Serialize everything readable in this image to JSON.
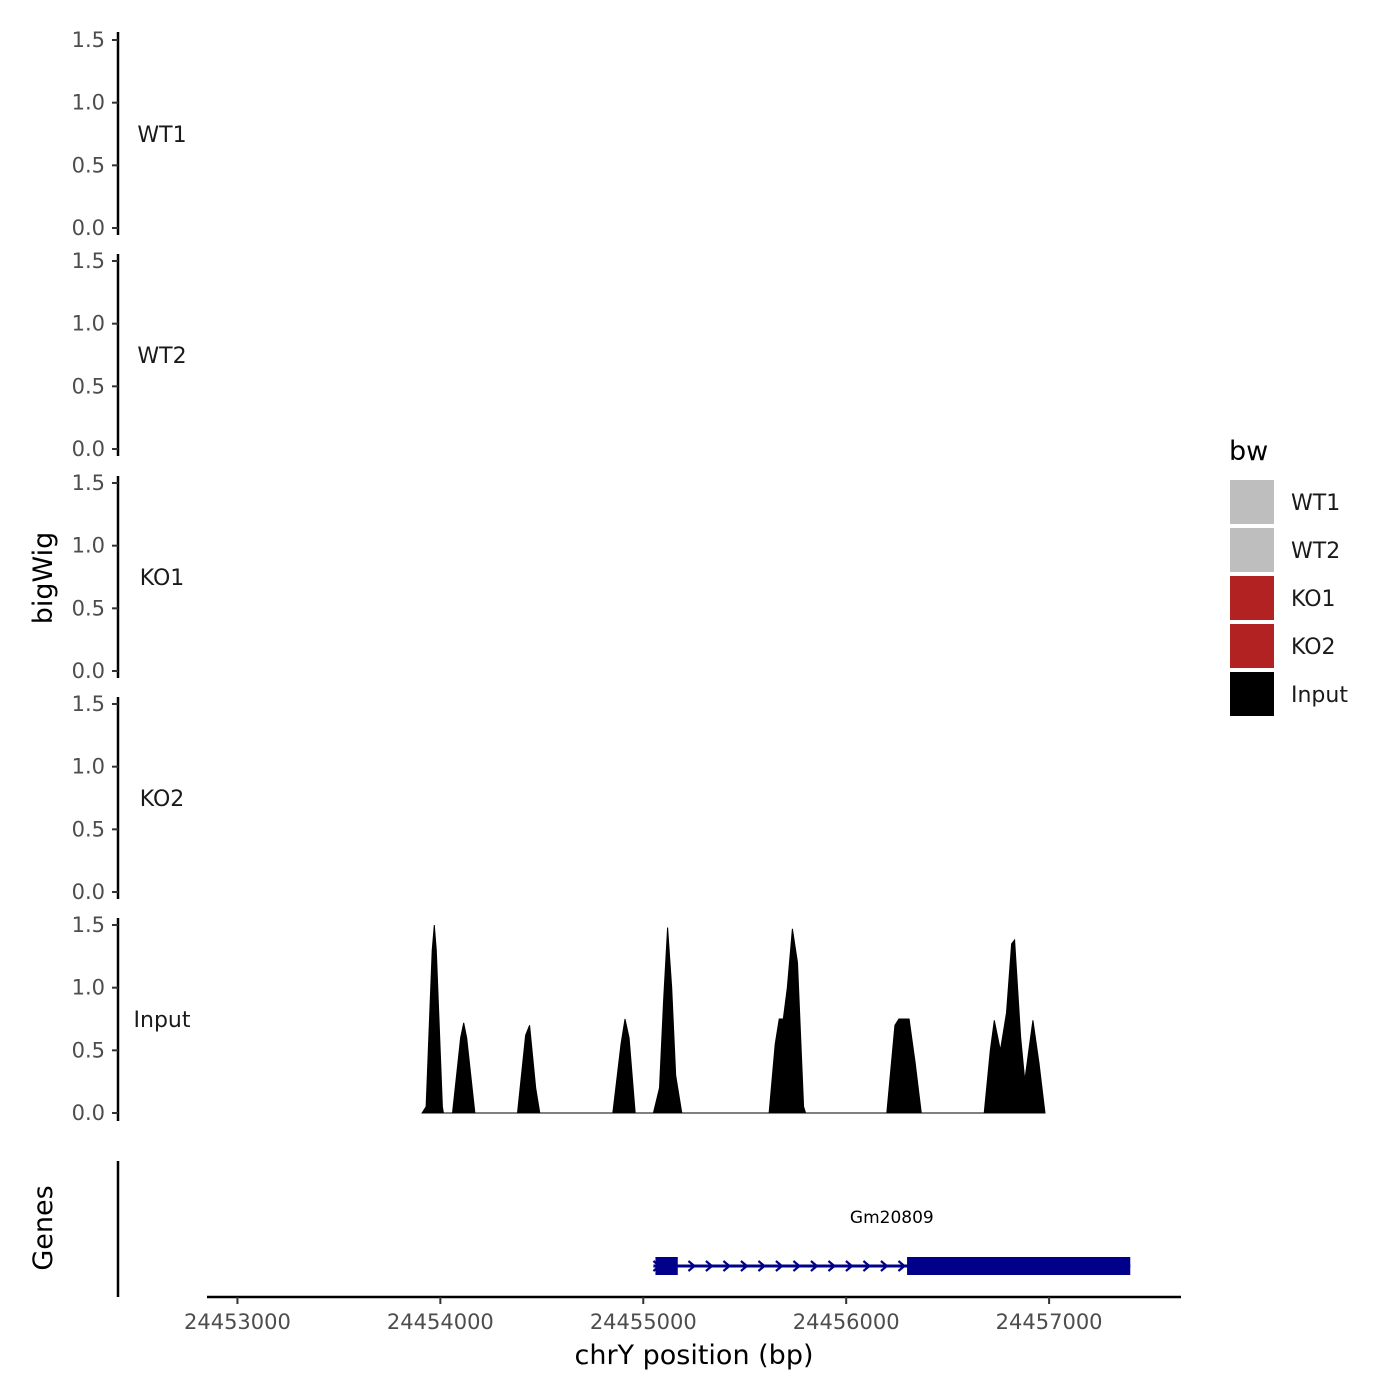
{
  "chart_data": {
    "type": "area",
    "y_axis_title": "bigWig",
    "x_axis_title": "chrY position (bp)",
    "ylim": [
      0,
      1.5
    ],
    "y_ticks": [
      "0.0",
      "0.5",
      "1.0",
      "1.5"
    ],
    "xlim": [
      24452850,
      24457650
    ],
    "x_ticks": [
      {
        "value": 24453000,
        "label": "24453000"
      },
      {
        "value": 24454000,
        "label": "24454000"
      },
      {
        "value": 24455000,
        "label": "24455000"
      },
      {
        "value": 24456000,
        "label": "24456000"
      },
      {
        "value": 24457000,
        "label": "24457000"
      }
    ],
    "tracks": [
      {
        "name": "WT1",
        "color": "#bebebe",
        "points": []
      },
      {
        "name": "WT2",
        "color": "#bebebe",
        "points": []
      },
      {
        "name": "KO1",
        "color": "#b22222",
        "points": []
      },
      {
        "name": "KO2",
        "color": "#b22222",
        "points": []
      },
      {
        "name": "Input",
        "color": "#000000",
        "points": [
          [
            24453910,
            0
          ],
          [
            24453930,
            0.05
          ],
          [
            24453960,
            1.3
          ],
          [
            24453970,
            1.5
          ],
          [
            24453980,
            1.3
          ],
          [
            24454010,
            0.05
          ],
          [
            24454015,
            0
          ],
          [
            24454060,
            0
          ],
          [
            24454100,
            0.6
          ],
          [
            24454115,
            0.72
          ],
          [
            24454130,
            0.6
          ],
          [
            24454170,
            0
          ],
          [
            24454380,
            0
          ],
          [
            24454420,
            0.62
          ],
          [
            24454440,
            0.7
          ],
          [
            24454470,
            0.2
          ],
          [
            24454490,
            0
          ],
          [
            24454850,
            0
          ],
          [
            24454890,
            0.55
          ],
          [
            24454910,
            0.75
          ],
          [
            24454930,
            0.6
          ],
          [
            24454960,
            0
          ],
          [
            24455050,
            0
          ],
          [
            24455080,
            0.2
          ],
          [
            24455100,
            0.9
          ],
          [
            24455120,
            1.48
          ],
          [
            24455140,
            1.0
          ],
          [
            24455160,
            0.3
          ],
          [
            24455190,
            0
          ],
          [
            24455620,
            0
          ],
          [
            24455650,
            0.55
          ],
          [
            24455670,
            0.75
          ],
          [
            24455690,
            0.75
          ],
          [
            24455710,
            1.0
          ],
          [
            24455735,
            1.47
          ],
          [
            24455760,
            1.2
          ],
          [
            24455790,
            0.05
          ],
          [
            24455800,
            0
          ],
          [
            24456200,
            0
          ],
          [
            24456240,
            0.7
          ],
          [
            24456260,
            0.75
          ],
          [
            24456310,
            0.75
          ],
          [
            24456340,
            0.4
          ],
          [
            24456370,
            0
          ],
          [
            24456680,
            0
          ],
          [
            24456710,
            0.5
          ],
          [
            24456730,
            0.74
          ],
          [
            24456760,
            0.5
          ],
          [
            24456790,
            0.8
          ],
          [
            24456815,
            1.35
          ],
          [
            24456830,
            1.38
          ],
          [
            24456860,
            0.6
          ],
          [
            24456880,
            0.26
          ],
          [
            24456900,
            0.5
          ],
          [
            24456920,
            0.74
          ],
          [
            24456950,
            0.4
          ],
          [
            24456980,
            0
          ]
        ]
      }
    ],
    "legend": {
      "title": "bw",
      "position": "right",
      "entries": [
        {
          "label": "WT1",
          "color": "#bebebe"
        },
        {
          "label": "WT2",
          "color": "#bebebe"
        },
        {
          "label": "KO1",
          "color": "#b22222"
        },
        {
          "label": "KO2",
          "color": "#b22222"
        },
        {
          "label": "Input",
          "color": "#000000"
        }
      ]
    },
    "genes_track": {
      "title": "Genes",
      "color": "#00008b",
      "genes": [
        {
          "name": "Gm20809",
          "strand": "+",
          "start": 24455050,
          "end": 24457400,
          "exons": [
            [
              24455060,
              24455170
            ],
            [
              24456300,
              24457400
            ]
          ]
        }
      ]
    }
  }
}
